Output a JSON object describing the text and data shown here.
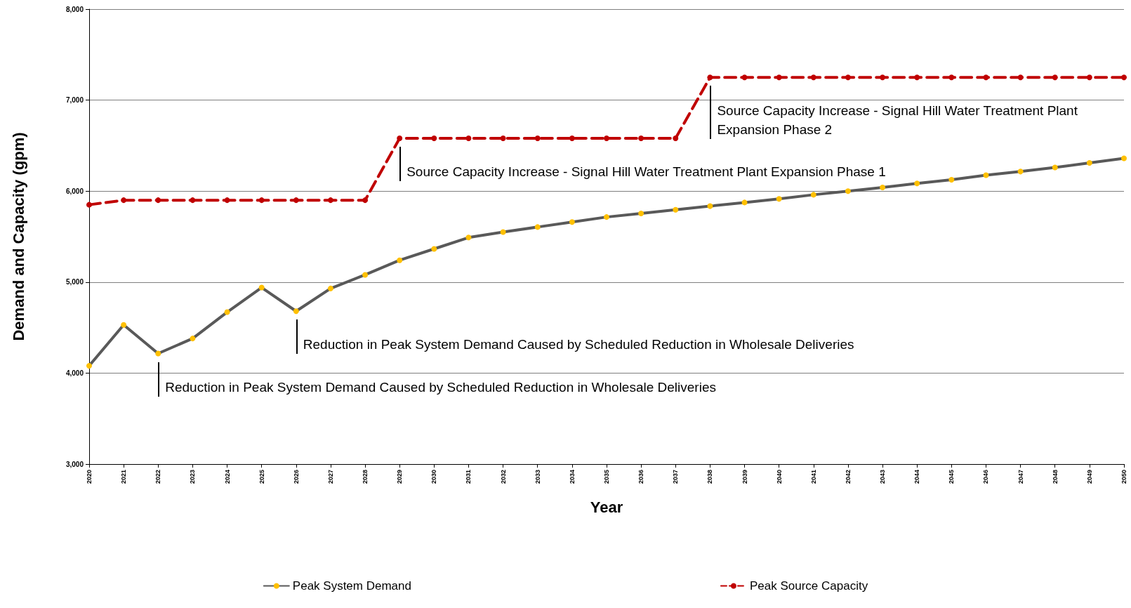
{
  "chart_data": {
    "type": "line",
    "xlabel": "Year",
    "ylabel": "Demand and Capacity (gpm)",
    "categories": [
      "2020",
      "2021",
      "2022",
      "2023",
      "2024",
      "2025",
      "2026",
      "2027",
      "2028",
      "2029",
      "2030",
      "2031",
      "2032",
      "2033",
      "2034",
      "2035",
      "2036",
      "2037",
      "2038",
      "2039",
      "2040",
      "2041",
      "2042",
      "2043",
      "2044",
      "2045",
      "2046",
      "2047",
      "2048",
      "2049",
      "2050"
    ],
    "ylim": [
      3000,
      8000
    ],
    "yticks": [
      {
        "value": 3000,
        "label": "3,000"
      },
      {
        "value": 4000,
        "label": "4,000"
      },
      {
        "value": 5000,
        "label": "5,000"
      },
      {
        "value": 6000,
        "label": "6,000"
      },
      {
        "value": 7000,
        "label": "7,000"
      },
      {
        "value": 8000,
        "label": "8,000"
      }
    ],
    "grid": "y",
    "legend": "bottom",
    "marker": "circle",
    "series": [
      {
        "name": "Peak System Demand",
        "color": "#595959",
        "line_style": "solid",
        "colors": [
          "#ffc000",
          "#ffc000",
          "#ffc000",
          "#ffc000",
          "#ffc000",
          "#ffc000",
          "#ffc000",
          "#ffc000",
          "#ffc000",
          "#ffc000",
          "#ffc000",
          "#ffc000",
          "#ffc000",
          "#ffc000",
          "#ffc000",
          "#ffc000",
          "#ffc000",
          "#ffc000",
          "#ffc000",
          "#ffc000",
          "#ffc000",
          "#ffc000",
          "#ffc000",
          "#ffc000",
          "#ffc000",
          "#ffc000",
          "#ffc000",
          "#ffc000",
          "#ffc000",
          "#ffc000",
          "#ffc000"
        ],
        "values": [
          4080,
          4530,
          4215,
          4380,
          4670,
          4940,
          4680,
          4930,
          5080,
          5240,
          5365,
          5490,
          5550,
          5605,
          5660,
          5715,
          5755,
          5795,
          5835,
          5875,
          5915,
          5960,
          6000,
          6040,
          6085,
          6125,
          6175,
          6215,
          6260,
          6310,
          6360
        ]
      },
      {
        "name": "Peak Source Capacity",
        "color": "#c00000",
        "line_style": "dashed",
        "values": [
          5850,
          5900,
          5900,
          5900,
          5900,
          5900,
          5900,
          5900,
          5900,
          6580,
          6580,
          6580,
          6580,
          6580,
          6580,
          6580,
          6580,
          6580,
          7250,
          7250,
          7250,
          7250,
          7250,
          7250,
          7250,
          7250,
          7250,
          7250,
          7250,
          7250,
          7250
        ]
      }
    ],
    "annotations": [
      {
        "text": "Reduction in Peak System Demand Caused by Scheduled Reduction in Wholesale Deliveries",
        "x": "2022",
        "y": 4215
      },
      {
        "text": "Reduction in Peak System Demand Caused by Scheduled Reduction in Wholesale Deliveries",
        "x": "2026",
        "y": 4680
      },
      {
        "text": "Source Capacity Increase - Signal Hill Water Treatment Plant Expansion Phase 1",
        "x": "2029",
        "y": 6580
      },
      {
        "text": "Source Capacity Increase - Signal Hill Water Treatment Plant Expansion Phase 2",
        "x": "2038",
        "y": 7250
      }
    ]
  }
}
